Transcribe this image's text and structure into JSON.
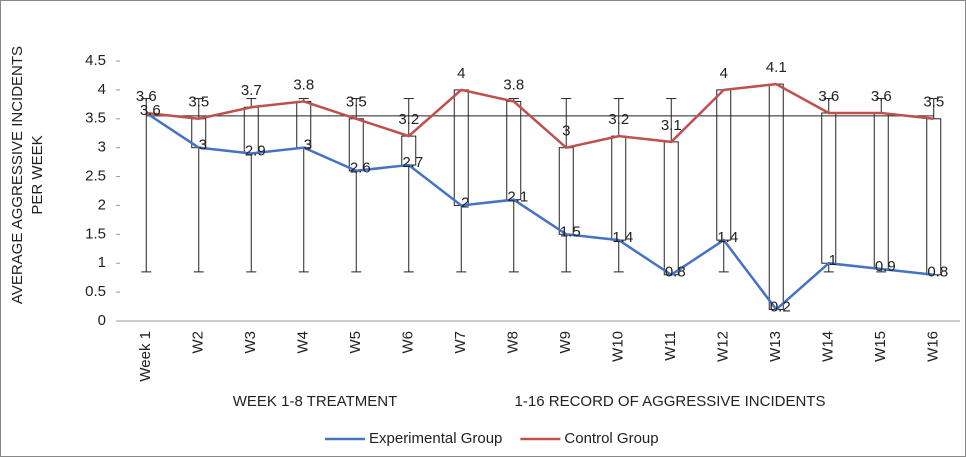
{
  "chart_data": {
    "type": "line",
    "y_axis_label": [
      "AVERAGE AGGRESSIVE INCIDENTS",
      "PER WEEK"
    ],
    "x_axis_labels": [
      "WEEK 1-8 TREATMENT",
      "1-16 RECORD OF AGGRESSIVE INCIDENTS"
    ],
    "categories": [
      "Week 1",
      "W2",
      "W3",
      "W4",
      "W5",
      "W6",
      "W7",
      "W8",
      "W9",
      "W10",
      "W11",
      "W12",
      "W13",
      "W14",
      "W15",
      "W16"
    ],
    "series": [
      {
        "name": "Experimental Group",
        "color": "#4472c4",
        "values": [
          3.6,
          3,
          2.9,
          3,
          2.6,
          2.7,
          2,
          2.1,
          1.5,
          1.4,
          0.8,
          1.4,
          0.2,
          1,
          0.9,
          0.8
        ]
      },
      {
        "name": "Control Group",
        "color": "#c0504d",
        "values": [
          3.6,
          3.5,
          3.7,
          3.8,
          3.5,
          3.2,
          4,
          3.8,
          3,
          3.2,
          3.1,
          4,
          4.1,
          3.6,
          3.6,
          3.5
        ]
      }
    ],
    "error_range": [
      0.85,
      3.85
    ],
    "reference_line": 3.55,
    "up_down_bars": true,
    "ylim": [
      0,
      4.5
    ],
    "yticks": [
      0,
      0.5,
      1,
      1.5,
      2,
      2.5,
      3,
      3.5,
      4,
      4.5
    ],
    "legend": "bottom"
  }
}
